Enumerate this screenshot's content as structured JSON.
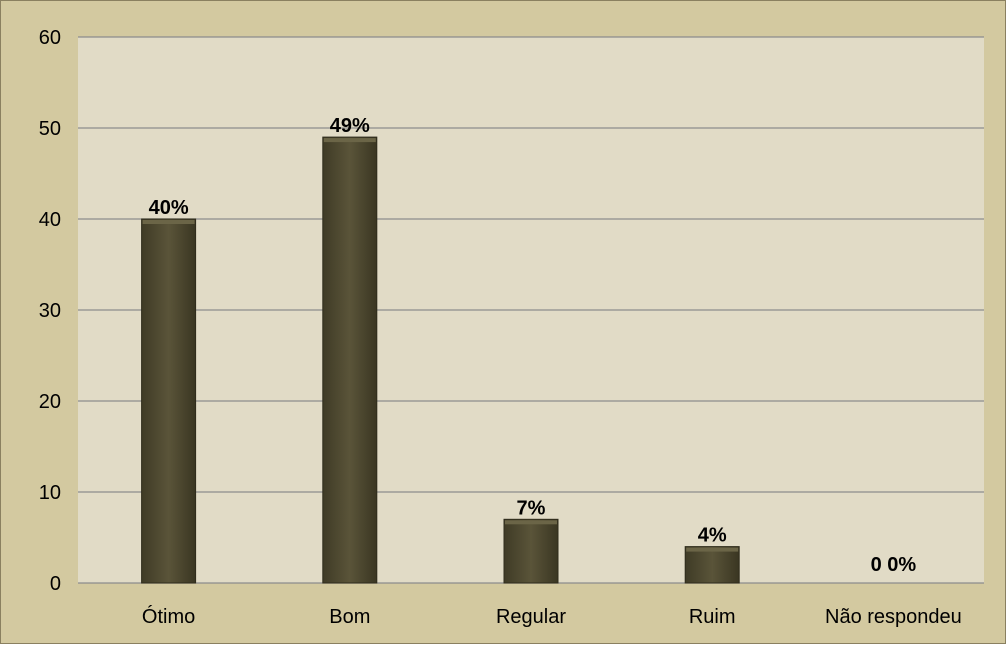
{
  "chart_data": {
    "type": "bar",
    "categories": [
      "Ótimo",
      "Bom",
      "Regular",
      "Ruim",
      "Não respondeu"
    ],
    "values": [
      40,
      49,
      7,
      4,
      0
    ],
    "data_labels": [
      "40%",
      "49%",
      "7%",
      "4%",
      "0 0%"
    ],
    "title": "",
    "xlabel": "",
    "ylabel": "",
    "ylim": [
      0,
      60
    ],
    "yticks": [
      "0",
      "10",
      "20",
      "30",
      "40",
      "50",
      "60"
    ],
    "grid": true,
    "legend": "none"
  },
  "colors": {
    "frame_background": "#d3c9a0",
    "plot_background": "#e1dbc6",
    "bar_fill": "#4f4a31",
    "bar_top": "#6b6547",
    "gridline": "#8c8c8c"
  }
}
